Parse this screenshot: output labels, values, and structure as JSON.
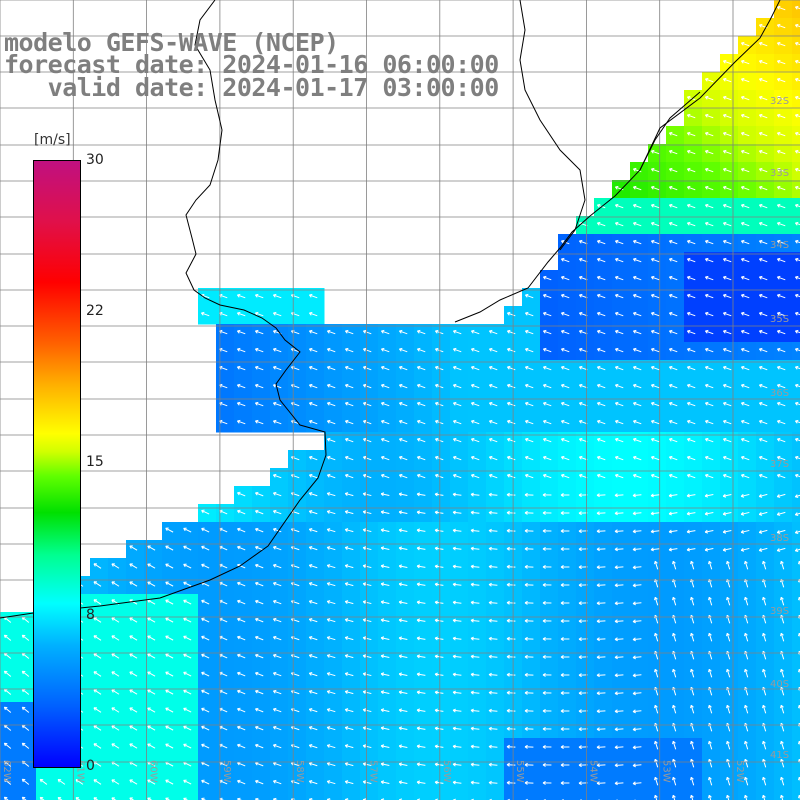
{
  "title": {
    "line1": "modelo GEFS-WAVE (NCEP)",
    "line2": "forecast date: 2024-01-16 06:00:00",
    "line3": "   valid date: 2024-01-17 03:00:00"
  },
  "colorbar": {
    "unit": "[m/s]",
    "ticks": [
      "30",
      "22",
      "15",
      "8",
      "0"
    ],
    "colors": [
      "#0000ff",
      "#0080ff",
      "#00ffff",
      "#00ff80",
      "#00c000",
      "#80ff00",
      "#ffff00",
      "#ffa000",
      "#ff6000",
      "#ff0000",
      "#d01060",
      "#c01080"
    ]
  },
  "latitude_labels": [
    "32S",
    "33S",
    "34S",
    "35S",
    "36S",
    "37S",
    "38S",
    "39S",
    "40S",
    "41S"
  ],
  "longitude_labels": [
    "62W",
    "61W",
    "60W",
    "59W",
    "58W",
    "57W",
    "56W",
    "55W",
    "54W",
    "53W",
    "52W",
    "51W"
  ],
  "colors": {
    "land": "#ffffff",
    "coast": "#000000",
    "grid": "#808080",
    "arrow": "#ffffff",
    "title": "#7f7f7f"
  }
}
